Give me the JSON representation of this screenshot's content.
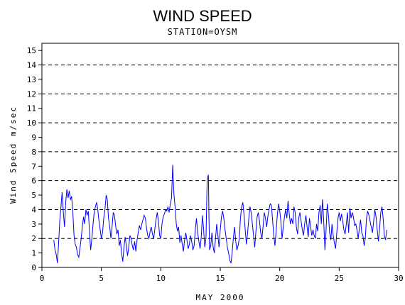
{
  "chart_data": {
    "type": "line",
    "title": "WIND SPEED",
    "subtitle": "STATION=OYSM",
    "xlabel": "MAY 2000",
    "ylabel": "Wind Speed m/sec",
    "xlim": [
      0,
      30
    ],
    "ylim": [
      0,
      15.5
    ],
    "x_ticks": [
      0,
      5,
      10,
      15,
      20,
      25,
      30
    ],
    "y_ticks": [
      0,
      1,
      2,
      3,
      4,
      5,
      6,
      7,
      8,
      9,
      10,
      11,
      12,
      13,
      14,
      15
    ],
    "reference_lines": [
      0,
      2,
      4,
      6,
      8,
      10,
      12,
      14
    ],
    "grid": false,
    "line_color": "#0000ff",
    "series": [
      {
        "values": [
          [
            1.0,
            1.9
          ],
          [
            1.1,
            1.2
          ],
          [
            1.2,
            0.9
          ],
          [
            1.3,
            0.3
          ],
          [
            1.4,
            1.6
          ],
          [
            1.5,
            3.2
          ],
          [
            1.6,
            4.2
          ],
          [
            1.7,
            5.2
          ],
          [
            1.8,
            3.8
          ],
          [
            1.9,
            2.8
          ],
          [
            2.0,
            4.5
          ],
          [
            2.1,
            5.4
          ],
          [
            2.2,
            4.8
          ],
          [
            2.3,
            5.3
          ],
          [
            2.4,
            4.7
          ],
          [
            2.5,
            4.9
          ],
          [
            2.6,
            3.8
          ],
          [
            2.7,
            2.2
          ],
          [
            2.8,
            1.6
          ],
          [
            2.9,
            1.4
          ],
          [
            3.0,
            0.9
          ],
          [
            3.1,
            0.7
          ],
          [
            3.2,
            1.3
          ],
          [
            3.3,
            2.0
          ],
          [
            3.4,
            2.8
          ],
          [
            3.5,
            3.5
          ],
          [
            3.6,
            3.0
          ],
          [
            3.7,
            4.0
          ],
          [
            3.8,
            3.6
          ],
          [
            3.9,
            3.9
          ],
          [
            4.0,
            2.5
          ],
          [
            4.1,
            1.2
          ],
          [
            4.2,
            2.0
          ],
          [
            4.3,
            3.0
          ],
          [
            4.4,
            3.8
          ],
          [
            4.5,
            4.2
          ],
          [
            4.6,
            4.5
          ],
          [
            4.7,
            4.0
          ],
          [
            4.8,
            3.2
          ],
          [
            4.9,
            2.6
          ],
          [
            5.0,
            2.0
          ],
          [
            5.1,
            2.4
          ],
          [
            5.2,
            3.4
          ],
          [
            5.3,
            4.0
          ],
          [
            5.4,
            5.0
          ],
          [
            5.5,
            4.7
          ],
          [
            5.6,
            3.4
          ],
          [
            5.7,
            2.8
          ],
          [
            5.8,
            2.0
          ],
          [
            5.9,
            2.8
          ],
          [
            6.0,
            3.8
          ],
          [
            6.1,
            3.6
          ],
          [
            6.2,
            2.9
          ],
          [
            6.3,
            2.3
          ],
          [
            6.4,
            2.6
          ],
          [
            6.5,
            1.5
          ],
          [
            6.6,
            1.9
          ],
          [
            6.7,
            1.0
          ],
          [
            6.8,
            0.4
          ],
          [
            6.9,
            1.4
          ],
          [
            7.0,
            2.1
          ],
          [
            7.1,
            1.5
          ],
          [
            7.2,
            0.8
          ],
          [
            7.3,
            1.4
          ],
          [
            7.4,
            2.2
          ],
          [
            7.5,
            2.0
          ],
          [
            7.6,
            1.5
          ],
          [
            7.7,
            1.2
          ],
          [
            7.8,
            1.8
          ],
          [
            7.9,
            1.1
          ],
          [
            8.0,
            1.9
          ],
          [
            8.1,
            2.4
          ],
          [
            8.2,
            2.9
          ],
          [
            8.3,
            2.6
          ],
          [
            8.4,
            3.0
          ],
          [
            8.5,
            3.3
          ],
          [
            8.6,
            3.6
          ],
          [
            8.7,
            3.4
          ],
          [
            8.8,
            2.7
          ],
          [
            8.9,
            2.2
          ],
          [
            9.0,
            2.0
          ],
          [
            9.1,
            2.5
          ],
          [
            9.2,
            2.8
          ],
          [
            9.3,
            2.3
          ],
          [
            9.4,
            2.0
          ],
          [
            9.5,
            2.7
          ],
          [
            9.6,
            3.3
          ],
          [
            9.7,
            3.8
          ],
          [
            9.8,
            3.2
          ],
          [
            9.9,
            2.2
          ],
          [
            10.0,
            2.0
          ],
          [
            10.1,
            3.0
          ],
          [
            10.2,
            3.5
          ],
          [
            10.3,
            3.7
          ],
          [
            10.4,
            4.0
          ],
          [
            10.5,
            3.9
          ],
          [
            10.6,
            4.2
          ],
          [
            10.7,
            3.8
          ],
          [
            10.8,
            4.4
          ],
          [
            10.9,
            4.8
          ],
          [
            11.0,
            7.1
          ],
          [
            11.1,
            5.1
          ],
          [
            11.2,
            4.2
          ],
          [
            11.3,
            3.0
          ],
          [
            11.4,
            2.5
          ],
          [
            11.5,
            2.8
          ],
          [
            11.6,
            1.7
          ],
          [
            11.7,
            2.2
          ],
          [
            11.8,
            1.6
          ],
          [
            11.9,
            1.1
          ],
          [
            12.0,
            1.9
          ],
          [
            12.1,
            2.4
          ],
          [
            12.2,
            1.9
          ],
          [
            12.3,
            1.3
          ],
          [
            12.4,
            1.6
          ],
          [
            12.5,
            2.2
          ],
          [
            12.6,
            1.8
          ],
          [
            12.7,
            1.2
          ],
          [
            12.8,
            1.5
          ],
          [
            12.9,
            2.6
          ],
          [
            13.0,
            3.4
          ],
          [
            13.1,
            2.4
          ],
          [
            13.2,
            1.8
          ],
          [
            13.3,
            1.3
          ],
          [
            13.4,
            2.1
          ],
          [
            13.5,
            3.6
          ],
          [
            13.6,
            2.6
          ],
          [
            13.7,
            1.4
          ],
          [
            13.8,
            2.0
          ],
          [
            13.9,
            6.1
          ],
          [
            14.0,
            6.4
          ],
          [
            14.05,
            3.5
          ],
          [
            14.1,
            1.2
          ],
          [
            14.2,
            1.5
          ],
          [
            14.3,
            2.4
          ],
          [
            14.4,
            1.4
          ],
          [
            14.5,
            1.0
          ],
          [
            14.6,
            2.0
          ],
          [
            14.7,
            3.0
          ],
          [
            14.8,
            2.2
          ],
          [
            14.9,
            1.4
          ],
          [
            15.0,
            2.6
          ],
          [
            15.1,
            3.5
          ],
          [
            15.2,
            3.9
          ],
          [
            15.3,
            3.4
          ],
          [
            15.4,
            2.6
          ],
          [
            15.5,
            2.0
          ],
          [
            15.6,
            1.4
          ],
          [
            15.7,
            1.0
          ],
          [
            15.8,
            0.5
          ],
          [
            15.9,
            0.3
          ],
          [
            16.0,
            1.0
          ],
          [
            16.1,
            2.0
          ],
          [
            16.2,
            2.8
          ],
          [
            16.3,
            1.8
          ],
          [
            16.4,
            1.2
          ],
          [
            16.5,
            1.5
          ],
          [
            16.6,
            2.0
          ],
          [
            16.7,
            3.4
          ],
          [
            16.8,
            4.2
          ],
          [
            16.9,
            4.5
          ],
          [
            17.0,
            3.6
          ],
          [
            17.1,
            2.6
          ],
          [
            17.2,
            1.6
          ],
          [
            17.3,
            2.4
          ],
          [
            17.4,
            3.4
          ],
          [
            17.5,
            4.2
          ],
          [
            17.6,
            3.8
          ],
          [
            17.7,
            3.0
          ],
          [
            17.8,
            2.2
          ],
          [
            17.9,
            1.4
          ],
          [
            18.0,
            2.5
          ],
          [
            18.1,
            3.5
          ],
          [
            18.2,
            3.8
          ],
          [
            18.3,
            3.2
          ],
          [
            18.4,
            2.4
          ],
          [
            18.5,
            2.0
          ],
          [
            18.6,
            2.8
          ],
          [
            18.7,
            3.8
          ],
          [
            18.8,
            3.4
          ],
          [
            18.9,
            2.8
          ],
          [
            19.0,
            3.5
          ],
          [
            19.1,
            4.0
          ],
          [
            19.2,
            4.4
          ],
          [
            19.3,
            4.3
          ],
          [
            19.4,
            3.3
          ],
          [
            19.5,
            2.2
          ],
          [
            19.6,
            1.5
          ],
          [
            19.7,
            2.5
          ],
          [
            19.8,
            3.6
          ],
          [
            19.9,
            4.4
          ],
          [
            20.0,
            3.9
          ],
          [
            20.1,
            3.2
          ],
          [
            20.2,
            2.0
          ],
          [
            20.3,
            2.8
          ],
          [
            20.4,
            3.5
          ],
          [
            20.5,
            4.0
          ],
          [
            20.6,
            3.4
          ],
          [
            20.7,
            4.6
          ],
          [
            20.8,
            3.7
          ],
          [
            20.9,
            3.0
          ],
          [
            21.0,
            3.4
          ],
          [
            21.1,
            3.0
          ],
          [
            21.2,
            4.2
          ],
          [
            21.3,
            3.8
          ],
          [
            21.4,
            2.8
          ],
          [
            21.5,
            2.3
          ],
          [
            21.6,
            3.4
          ],
          [
            21.7,
            3.8
          ],
          [
            21.8,
            3.2
          ],
          [
            21.9,
            2.6
          ],
          [
            22.0,
            2.2
          ],
          [
            22.1,
            3.0
          ],
          [
            22.2,
            3.6
          ],
          [
            22.3,
            2.8
          ],
          [
            22.4,
            2.1
          ],
          [
            22.5,
            3.4
          ],
          [
            22.6,
            2.8
          ],
          [
            22.7,
            2.2
          ],
          [
            22.8,
            2.6
          ],
          [
            22.9,
            2.2
          ],
          [
            23.0,
            2.0
          ],
          [
            23.1,
            3.0
          ],
          [
            23.2,
            2.5
          ],
          [
            23.3,
            3.8
          ],
          [
            23.4,
            4.3
          ],
          [
            23.5,
            3.0
          ],
          [
            23.6,
            4.7
          ],
          [
            23.7,
            3.2
          ],
          [
            23.8,
            1.2
          ],
          [
            23.9,
            2.6
          ],
          [
            24.0,
            4.4
          ],
          [
            24.1,
            3.6
          ],
          [
            24.2,
            2.4
          ],
          [
            24.3,
            1.9
          ],
          [
            24.4,
            3.0
          ],
          [
            24.5,
            2.2
          ],
          [
            24.6,
            1.7
          ],
          [
            24.7,
            1.3
          ],
          [
            24.8,
            2.4
          ],
          [
            24.9,
            3.4
          ],
          [
            25.0,
            3.8
          ],
          [
            25.1,
            3.2
          ],
          [
            25.2,
            3.7
          ],
          [
            25.3,
            3.2
          ],
          [
            25.4,
            2.6
          ],
          [
            25.5,
            2.3
          ],
          [
            25.6,
            3.0
          ],
          [
            25.7,
            3.8
          ],
          [
            25.8,
            2.4
          ],
          [
            25.9,
            4.1
          ],
          [
            26.0,
            3.4
          ],
          [
            26.1,
            3.8
          ],
          [
            26.2,
            3.5
          ],
          [
            26.3,
            2.9
          ],
          [
            26.4,
            3.0
          ],
          [
            26.5,
            2.6
          ],
          [
            26.6,
            2.0
          ],
          [
            26.7,
            2.7
          ],
          [
            26.8,
            3.3
          ],
          [
            26.9,
            2.4
          ],
          [
            27.0,
            2.2
          ],
          [
            27.1,
            1.5
          ],
          [
            27.2,
            2.0
          ],
          [
            27.3,
            3.4
          ],
          [
            27.4,
            3.9
          ],
          [
            27.5,
            3.6
          ],
          [
            27.6,
            3.2
          ],
          [
            27.7,
            2.8
          ],
          [
            27.8,
            2.4
          ],
          [
            27.9,
            3.2
          ],
          [
            28.0,
            4.0
          ],
          [
            28.1,
            3.5
          ],
          [
            28.2,
            2.6
          ],
          [
            28.3,
            1.8
          ],
          [
            28.4,
            2.7
          ],
          [
            28.5,
            3.8
          ],
          [
            28.6,
            4.2
          ],
          [
            28.7,
            3.4
          ],
          [
            28.8,
            2.2
          ],
          [
            28.9,
            1.9
          ],
          [
            29.0,
            2.6
          ]
        ]
      }
    ]
  }
}
